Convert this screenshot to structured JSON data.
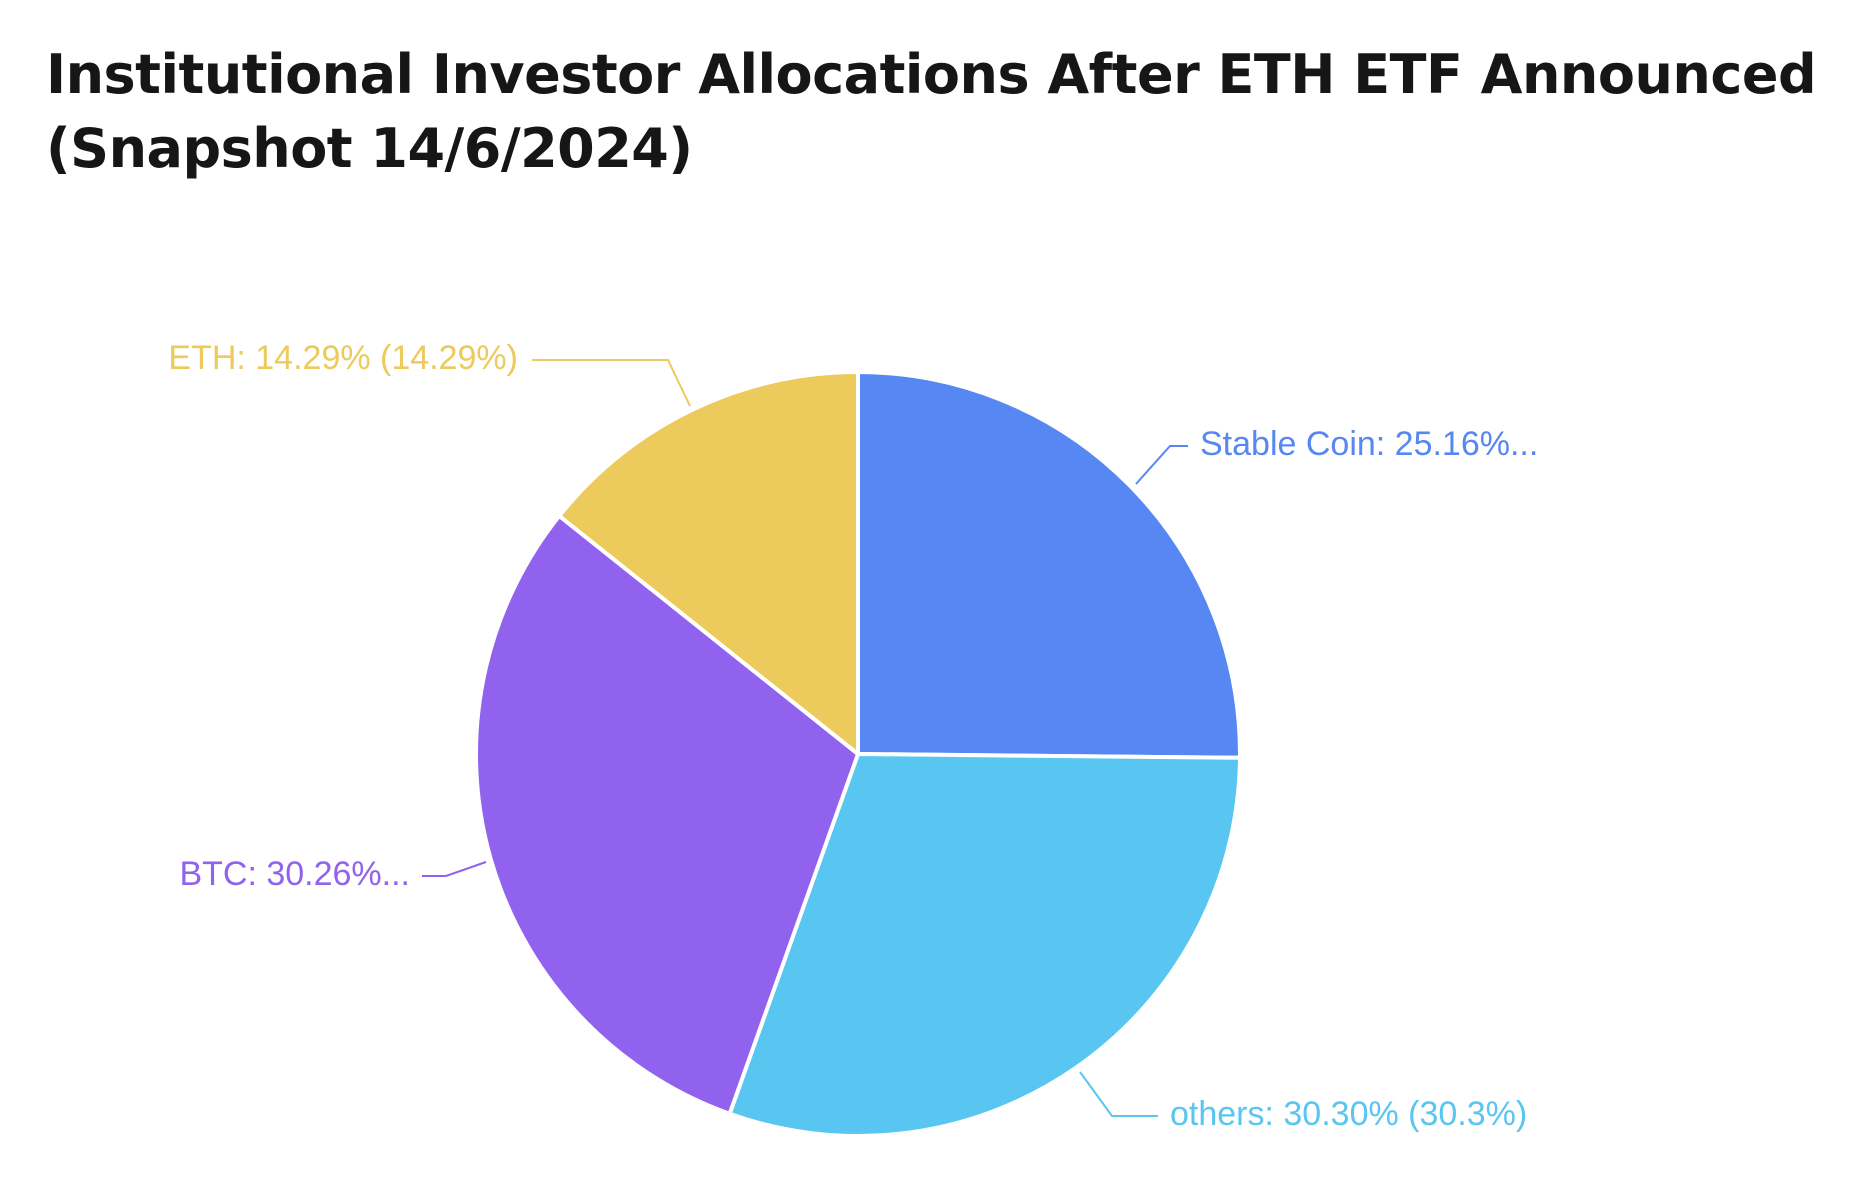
{
  "chart_data": {
    "type": "pie",
    "title": "Institutional Investor Allocations After ETH ETF Announced (Snapshot 14/6/2024)",
    "slices": [
      {
        "name": "Stable Coin",
        "value": 25.16,
        "label": "Stable Coin: 25.16%...",
        "color": "#5787f2"
      },
      {
        "name": "others",
        "value": 30.3,
        "label": "others: 30.30% (30.3%)",
        "color": "#58c6f0"
      },
      {
        "name": "BTC",
        "value": 30.26,
        "label": "BTC: 30.26%...",
        "color": "#9162ee"
      },
      {
        "name": "ETH",
        "value": 14.29,
        "label": "ETH: 14.29% (14.29%)",
        "color": "#ecca5b"
      }
    ]
  }
}
